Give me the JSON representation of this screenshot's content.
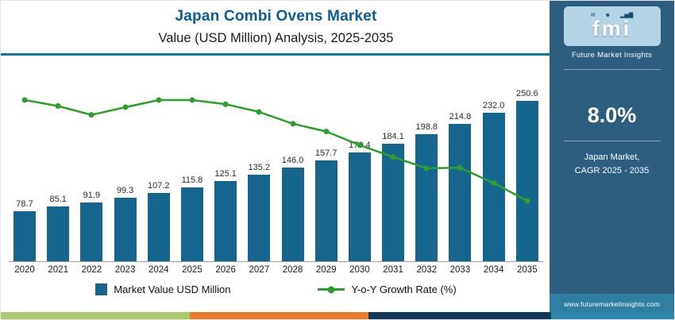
{
  "header": {
    "title": "Japan Combi Ovens Market",
    "subtitle": "Value (USD Million) Analysis, 2025-2035"
  },
  "chart_data": {
    "type": "bar",
    "title": "Japan Combi Ovens Market",
    "subtitle": "Value (USD Million) Analysis, 2025-2035",
    "categories": [
      "2020",
      "2021",
      "2022",
      "2023",
      "2024",
      "2025",
      "2026",
      "2027",
      "2028",
      "2029",
      "2030",
      "2031",
      "2032",
      "2033",
      "2034",
      "2035"
    ],
    "series": [
      {
        "name": "Market Value USD Million",
        "type": "bar",
        "values": [
          78.7,
          85.1,
          91.9,
          99.3,
          107.2,
          115.8,
          125.1,
          135.2,
          146.0,
          157.7,
          170.4,
          184.1,
          198.8,
          214.8,
          232.0,
          250.6
        ],
        "value_labels": [
          "78.7",
          "85.1",
          "91.9",
          "99.3",
          "107.2",
          "115.8",
          "125.1",
          "135.2",
          "146.0",
          "157.7",
          "170.4",
          "184.1",
          "198.8",
          "214.8",
          "232.0",
          "250.6"
        ]
      },
      {
        "name": "Y-o-Y Growth Rate (%)",
        "type": "line",
        "axis_labels_shown": false,
        "values_approx_pct": [
          8.2,
          8.1,
          7.95,
          8.08,
          8.2,
          8.2,
          8.13,
          8.0,
          7.8,
          7.67,
          7.44,
          7.24,
          7.05,
          7.06,
          6.8,
          6.5
        ]
      }
    ],
    "value_labels_shown": true,
    "legend_position": "bottom",
    "grid": false,
    "ylim": [
      0,
      260
    ]
  },
  "legend": {
    "bar_label": "Market Value USD Million",
    "line_label": "Y-o-Y Growth Rate (%)"
  },
  "sidebar": {
    "logo_text": "fmi",
    "logo_caption": "Future Market Insights",
    "stat_value": "8.0%",
    "stat_caption_line1": "Japan Market,",
    "stat_caption_line2": "CAGR 2025 - 2035",
    "website": "www.futuremarketinsights.com"
  },
  "colors": {
    "bar": "#15658f",
    "line": "#2da02c",
    "title": "#0b5c94",
    "divider": "#1478a2",
    "sidebar_bg": "#2c5e80",
    "sidebar_footer_bg": "#2f7fa5",
    "logo_box_bg": "#b5d4e6",
    "footer_strip": [
      {
        "color": "#a8ca6a",
        "width_pct": 28
      },
      {
        "color": "#e97b2c",
        "width_pct": 26.5
      },
      {
        "color": "#16395c",
        "width_pct": 27
      },
      {
        "color": "#2f86ad",
        "width_pct": 18.5
      }
    ]
  }
}
